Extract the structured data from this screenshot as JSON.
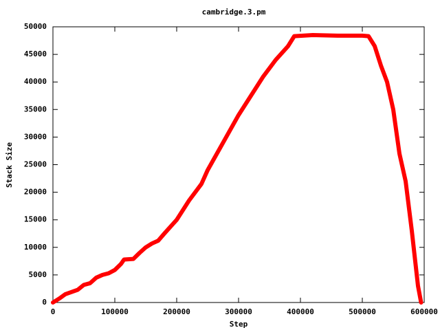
{
  "chart_data": {
    "type": "line",
    "title": "cambridge.3.pm",
    "x_label": "Step",
    "y_label": "Stack Size",
    "x": [
      0,
      10000,
      20000,
      40000,
      50000,
      60000,
      70000,
      80000,
      90000,
      100000,
      110000,
      115000,
      130000,
      140000,
      150000,
      160000,
      170000,
      180000,
      200000,
      220000,
      240000,
      250000,
      275000,
      300000,
      320000,
      340000,
      360000,
      380000,
      390000,
      420000,
      460000,
      500000,
      510000,
      520000,
      530000,
      540000,
      550000,
      560000,
      570000,
      580000,
      590000,
      595000
    ],
    "values": [
      0,
      700,
      1500,
      2300,
      3200,
      3500,
      4500,
      5000,
      5300,
      5900,
      7000,
      7800,
      7900,
      9000,
      10000,
      10700,
      11200,
      12500,
      15000,
      18500,
      21500,
      24000,
      29000,
      34000,
      37500,
      41000,
      44000,
      46500,
      48300,
      48500,
      48400,
      48400,
      48300,
      46500,
      43000,
      40000,
      35000,
      27000,
      22000,
      13000,
      3000,
      0
    ],
    "color": "#ff0000",
    "xlim": [
      0,
      600000
    ],
    "xticks": [
      0,
      100000,
      200000,
      300000,
      400000,
      500000,
      600000
    ],
    "ylim": [
      0,
      50000
    ],
    "yticks": [
      0,
      5000,
      10000,
      15000,
      20000,
      25000,
      30000,
      35000,
      40000,
      45000,
      50000
    ]
  }
}
